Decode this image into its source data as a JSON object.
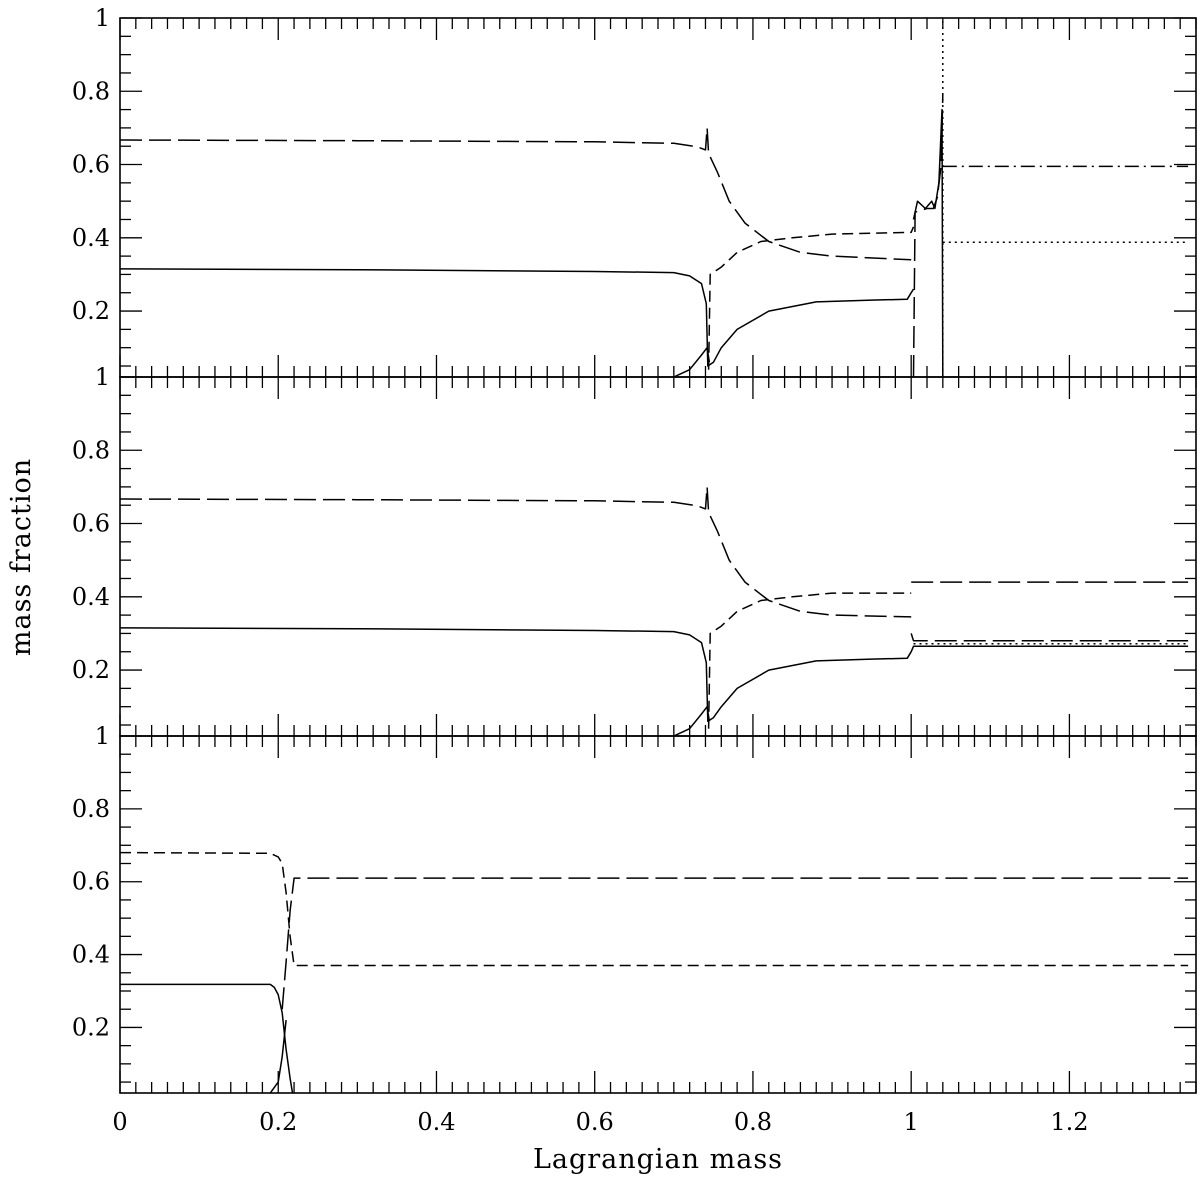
{
  "chart_data": {
    "type": "line",
    "xlabel": "Lagrangian mass",
    "ylabel": "mass fraction",
    "xlim": [
      0,
      1.36
    ],
    "ylim": [
      0.02,
      1.0
    ],
    "x_ticks": [
      {
        "value": 0,
        "label": "0"
      },
      {
        "value": 0.2,
        "label": "0.2"
      },
      {
        "value": 0.4,
        "label": "0.4"
      },
      {
        "value": 0.6,
        "label": "0.6"
      },
      {
        "value": 0.8,
        "label": "0.8"
      },
      {
        "value": 1.0,
        "label": "1"
      },
      {
        "value": 1.2,
        "label": "1.2"
      }
    ],
    "x_minor_step": 0.02,
    "y_ticks": [
      {
        "value": 0.2,
        "label": "0.2"
      },
      {
        "value": 0.4,
        "label": "0.4"
      },
      {
        "value": 0.6,
        "label": "0.6"
      },
      {
        "value": 0.8,
        "label": "0.8"
      },
      {
        "value": 1.0,
        "label": "1"
      }
    ],
    "y_minor_step": 0.05,
    "panels": [
      {
        "series": [
          {
            "style": "long-dash",
            "points": [
              [
                0,
                0.667
              ],
              [
                0.3,
                0.665
              ],
              [
                0.6,
                0.662
              ],
              [
                0.7,
                0.658
              ],
              [
                0.73,
                0.648
              ],
              [
                0.74,
                0.64
              ],
              [
                0.742,
                0.7
              ],
              [
                0.744,
                0.63
              ],
              [
                0.755,
                0.58
              ],
              [
                0.77,
                0.5
              ],
              [
                0.79,
                0.44
              ],
              [
                0.82,
                0.39
              ],
              [
                0.86,
                0.36
              ],
              [
                0.9,
                0.35
              ],
              [
                1.0,
                0.34
              ]
            ]
          },
          {
            "style": "short-dash",
            "points": [
              [
                0.744,
                0.04
              ],
              [
                0.746,
                0.3
              ],
              [
                0.76,
                0.32
              ],
              [
                0.78,
                0.36
              ],
              [
                0.81,
                0.39
              ],
              [
                0.85,
                0.4
              ],
              [
                0.9,
                0.41
              ],
              [
                1.0,
                0.415
              ],
              [
                1.003,
                0.43
              ]
            ]
          },
          {
            "style": "solid",
            "points": [
              [
                0,
                0.315
              ],
              [
                0.3,
                0.313
              ],
              [
                0.6,
                0.308
              ],
              [
                0.7,
                0.305
              ],
              [
                0.72,
                0.296
              ],
              [
                0.735,
                0.275
              ],
              [
                0.741,
                0.22
              ],
              [
                0.743,
                0.05
              ],
              [
                0.75,
                0.06
              ],
              [
                0.76,
                0.1
              ],
              [
                0.78,
                0.15
              ],
              [
                0.82,
                0.2
              ],
              [
                0.88,
                0.225
              ],
              [
                0.95,
                0.23
              ],
              [
                0.995,
                0.232
              ],
              [
                1.0,
                0.25
              ],
              [
                1.003,
                0.26
              ]
            ]
          },
          {
            "style": "solid",
            "points": [
              [
                0.7,
                0.02
              ],
              [
                0.72,
                0.04
              ],
              [
                0.735,
                0.08
              ],
              [
                0.742,
                0.1
              ],
              [
                0.745,
                0.06
              ]
            ]
          },
          {
            "style": "long-dash",
            "points": [
              [
                1.003,
                0.02
              ],
              [
                1.005,
                0.47
              ],
              [
                1.02,
                0.48
              ],
              [
                1.028,
                0.48
              ],
              [
                1.033,
                0.51
              ],
              [
                1.038,
                0.6
              ],
              [
                1.04,
                0.79
              ]
            ]
          },
          {
            "style": "solid",
            "points": [
              [
                1.003,
                0.45
              ],
              [
                1.008,
                0.5
              ],
              [
                1.018,
                0.48
              ],
              [
                1.026,
                0.5
              ],
              [
                1.03,
                0.48
              ],
              [
                1.035,
                0.55
              ],
              [
                1.039,
                0.75
              ],
              [
                1.04,
                0.02
              ]
            ]
          },
          {
            "style": "dotted",
            "points": [
              [
                1.04,
                0.02
              ],
              [
                1.04,
                1.0
              ]
            ]
          },
          {
            "style": "dash-dot",
            "points": [
              [
                1.04,
                0.595
              ],
              [
                1.35,
                0.595
              ]
            ]
          },
          {
            "style": "dotted",
            "points": [
              [
                1.04,
                0.388
              ],
              [
                1.35,
                0.388
              ]
            ]
          }
        ]
      },
      {
        "series": [
          {
            "style": "long-dash",
            "points": [
              [
                0,
                0.667
              ],
              [
                0.3,
                0.665
              ],
              [
                0.6,
                0.662
              ],
              [
                0.7,
                0.658
              ],
              [
                0.73,
                0.648
              ],
              [
                0.74,
                0.64
              ],
              [
                0.742,
                0.7
              ],
              [
                0.744,
                0.63
              ],
              [
                0.755,
                0.58
              ],
              [
                0.77,
                0.5
              ],
              [
                0.79,
                0.44
              ],
              [
                0.82,
                0.39
              ],
              [
                0.86,
                0.36
              ],
              [
                0.9,
                0.35
              ],
              [
                1.0,
                0.345
              ]
            ]
          },
          {
            "style": "short-dash",
            "points": [
              [
                0.744,
                0.04
              ],
              [
                0.746,
                0.3
              ],
              [
                0.76,
                0.32
              ],
              [
                0.78,
                0.36
              ],
              [
                0.81,
                0.39
              ],
              [
                0.85,
                0.4
              ],
              [
                0.9,
                0.41
              ],
              [
                1.0,
                0.41
              ]
            ]
          },
          {
            "style": "solid",
            "points": [
              [
                0,
                0.315
              ],
              [
                0.3,
                0.313
              ],
              [
                0.6,
                0.308
              ],
              [
                0.7,
                0.305
              ],
              [
                0.72,
                0.296
              ],
              [
                0.735,
                0.275
              ],
              [
                0.741,
                0.22
              ],
              [
                0.743,
                0.06
              ],
              [
                0.75,
                0.07
              ],
              [
                0.76,
                0.1
              ],
              [
                0.78,
                0.15
              ],
              [
                0.82,
                0.2
              ],
              [
                0.88,
                0.225
              ],
              [
                0.95,
                0.23
              ],
              [
                0.995,
                0.232
              ],
              [
                1.0,
                0.25
              ],
              [
                1.003,
                0.265
              ],
              [
                1.35,
                0.265
              ]
            ]
          },
          {
            "style": "solid",
            "points": [
              [
                0.7,
                0.02
              ],
              [
                0.72,
                0.04
              ],
              [
                0.735,
                0.08
              ],
              [
                0.742,
                0.1
              ],
              [
                0.745,
                0.06
              ]
            ]
          },
          {
            "style": "long-dash",
            "points": [
              [
                1.0,
                0.44
              ],
              [
                1.35,
                0.44
              ]
            ]
          },
          {
            "style": "long-dash",
            "points": [
              [
                1.0,
                0.3
              ],
              [
                1.003,
                0.28
              ],
              [
                1.35,
                0.28
              ]
            ]
          },
          {
            "style": "dotted",
            "points": [
              [
                1.003,
                0.272
              ],
              [
                1.35,
                0.272
              ]
            ]
          }
        ]
      },
      {
        "series": [
          {
            "style": "short-dash",
            "points": [
              [
                0,
                0.68
              ],
              [
                0.19,
                0.678
              ],
              [
                0.2,
                0.668
              ],
              [
                0.205,
                0.65
              ],
              [
                0.21,
                0.57
              ],
              [
                0.215,
                0.45
              ],
              [
                0.22,
                0.37
              ],
              [
                1.35,
                0.37
              ]
            ]
          },
          {
            "style": "long-dash",
            "points": [
              [
                0.205,
                0.25
              ],
              [
                0.21,
                0.38
              ],
              [
                0.215,
                0.52
              ],
              [
                0.22,
                0.61
              ],
              [
                1.35,
                0.61
              ]
            ]
          },
          {
            "style": "solid",
            "points": [
              [
                0,
                0.318
              ],
              [
                0.19,
                0.318
              ],
              [
                0.195,
                0.31
              ],
              [
                0.2,
                0.29
              ],
              [
                0.205,
                0.24
              ],
              [
                0.21,
                0.14
              ],
              [
                0.215,
                0.06
              ],
              [
                0.218,
                0.02
              ]
            ]
          },
          {
            "style": "solid",
            "points": [
              [
                0.19,
                0.02
              ],
              [
                0.2,
                0.05
              ],
              [
                0.205,
                0.12
              ],
              [
                0.21,
                0.22
              ]
            ]
          }
        ]
      }
    ]
  }
}
